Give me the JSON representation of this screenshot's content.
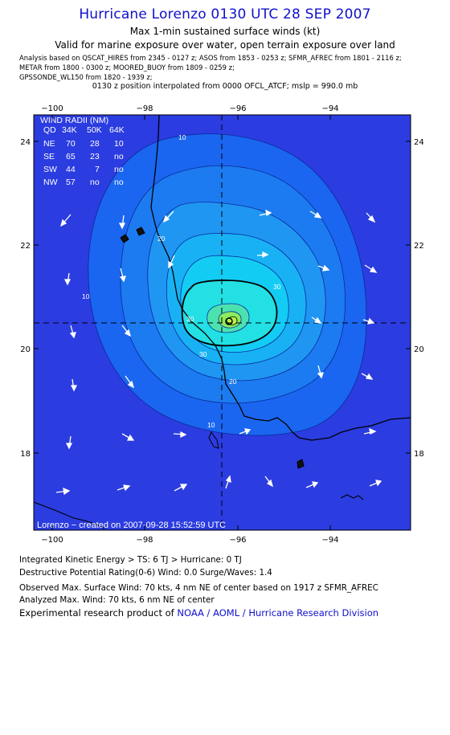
{
  "header": {
    "title": "Hurricane Lorenzo 0130 UTC 28 SEP 2007",
    "subtitle": "Max 1-min sustained surface winds (kt)",
    "validity": "Valid for marine exposure over water, open terrain exposure over land",
    "analysis_lines": [
      "Analysis based on  QSCAT_HIRES from 2345 - 0127 z;  ASOS from 1853 - 0253 z;  SFMR_AFREC from 1801 - 2116 z;",
      "METAR from 1800 - 0300 z;  MOORED_BUOY from 1809 - 0259 z;",
      "GPSSONDE_WL150 from 1820 - 1939 z;"
    ],
    "interpolation": "0130 z position interpolated from 0000 OFCL_ATCF; mslp = 990.0 mb"
  },
  "map": {
    "lon_labels": [
      "−100",
      "−98",
      "−96",
      "−94"
    ],
    "lat_labels": [
      "24",
      "22",
      "20",
      "18"
    ],
    "contour_labels": [
      "10",
      "10",
      "20",
      "20",
      "30",
      "30",
      "30",
      "10"
    ],
    "center": {
      "lon": -96.1,
      "lat": 20.5
    },
    "colors": {
      "ocean": "#2b3ce0",
      "c10": "#1a66f0",
      "c20": "#1f8ff2",
      "c30": "#12c8f4",
      "c40": "#2ee6d4",
      "c50": "#55e896",
      "c60": "#8aec5c",
      "frame": "#000000"
    },
    "credit": "Lorenzo − created on 2007-09-28 15:52:59 UTC"
  },
  "wind_radii": {
    "title": "WIND RADII (NM)",
    "columns": [
      "QD",
      "34K",
      "50K",
      "64K"
    ],
    "rows": [
      [
        "NE",
        "70",
        "28",
        "10"
      ],
      [
        "SE",
        "65",
        "23",
        "no"
      ],
      [
        "SW",
        "44",
        "7",
        "no"
      ],
      [
        "NW",
        "57",
        "no",
        "no"
      ]
    ]
  },
  "footer": {
    "ike": "Integrated Kinetic Energy > TS: 6 TJ   > Hurricane: 0 TJ",
    "dpr": "Destructive Potential Rating(0-6)   Wind: 0.0 Surge/Waves: 1.4",
    "observed": "Observed Max. Surface Wind: 70 kts, 4 nm NE of center based on 1917 z SFMR_AFREC",
    "analyzed": "Analyzed Max. Wind: 70 kts, 6 nm NE of center",
    "credit_prefix": "Experimental research product of ",
    "credit_link": "NOAA / AOML / Hurricane Research Division"
  }
}
